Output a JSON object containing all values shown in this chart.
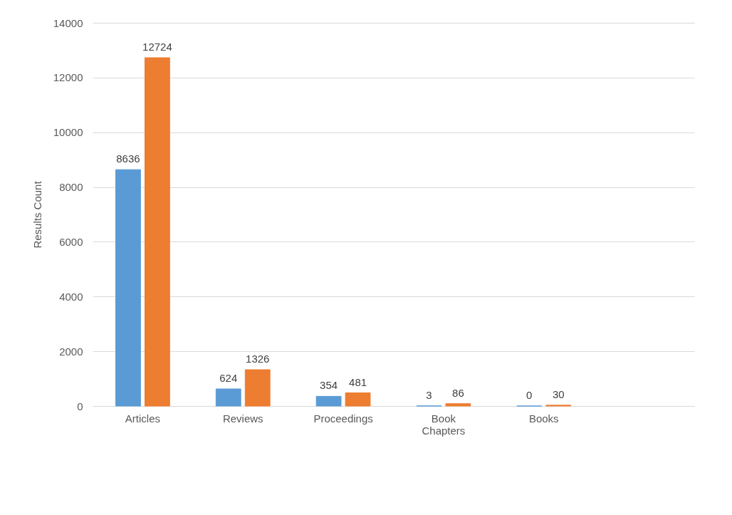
{
  "chart_data": {
    "type": "bar",
    "ylabel": "Results Count",
    "categories": [
      "Articles",
      "Reviews",
      "Proceedings",
      "Book Chapters",
      "Books",
      null
    ],
    "series": [
      {
        "color": "#5b9bd5",
        "values": [
          8636,
          624,
          354,
          3,
          0,
          null
        ]
      },
      {
        "color": "#ed7d31",
        "values": [
          12724,
          1326,
          481,
          86,
          30,
          null
        ]
      }
    ],
    "ylim": [
      0,
      14000
    ],
    "yticks": [
      0,
      2000,
      4000,
      6000,
      8000,
      10000,
      12000,
      14000
    ],
    "grid": "y",
    "data_labels": true
  }
}
